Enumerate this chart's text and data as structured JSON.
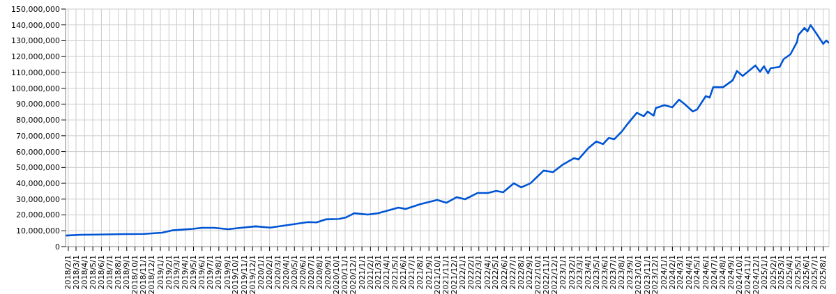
{
  "chart_data": {
    "type": "line",
    "x": [
      "2018-01-22",
      "2018-03-18",
      "2018-05-10",
      "2018-08-25",
      "2018-11-03",
      "2019-01-07",
      "2019-02-15",
      "2019-04-28",
      "2019-06-01",
      "2019-07-15",
      "2019-09-04",
      "2019-10-20",
      "2019-12-12",
      "2020-02-03",
      "2020-04-25",
      "2020-06-20",
      "2020-07-20",
      "2020-08-22",
      "2020-10-10",
      "2020-11-05",
      "2020-12-04",
      "2021-01-22",
      "2021-03-01",
      "2021-04-07",
      "2021-05-13",
      "2021-06-08",
      "2021-08-01",
      "2021-10-01",
      "2021-11-03",
      "2021-12-10",
      "2022-01-10",
      "2022-02-25",
      "2022-04-03",
      "2022-05-03",
      "2022-05-28",
      "2022-07-06",
      "2022-08-01",
      "2022-09-04",
      "2022-10-22",
      "2022-11-25",
      "2022-12-28",
      "2023-02-10",
      "2023-02-25",
      "2023-04-01",
      "2023-05-01",
      "2023-05-25",
      "2023-06-15",
      "2023-07-05",
      "2023-08-03",
      "2023-08-22",
      "2023-09-25",
      "2023-10-20",
      "2023-11-03",
      "2023-11-25",
      "2023-12-03",
      "2024-01-03",
      "2024-02-01",
      "2024-02-25",
      "2024-03-15",
      "2024-04-15",
      "2024-05-01",
      "2024-06-01",
      "2024-06-15",
      "2024-06-28",
      "2024-08-03",
      "2024-09-07",
      "2024-09-22",
      "2024-10-13",
      "2024-11-28",
      "2024-12-15",
      "2024-12-29",
      "2025-01-13",
      "2025-01-22",
      "2025-02-24",
      "2025-03-10",
      "2025-04-04",
      "2025-04-28",
      "2025-05-03",
      "2025-05-25",
      "2025-06-05",
      "2025-06-16",
      "2025-07-07",
      "2025-08-01",
      "2025-08-12",
      "2025-08-22"
    ],
    "series": [
      {
        "color": "#0055d4",
        "values": [
          7000000,
          7500000,
          7600000,
          7900000,
          8000000,
          8800000,
          10300000,
          11200000,
          11900000,
          11900000,
          11000000,
          11900000,
          12800000,
          12000000,
          14100000,
          15500000,
          15300000,
          17200000,
          17500000,
          18500000,
          21100000,
          20200000,
          21100000,
          22900000,
          24600000,
          23800000,
          26800000,
          29500000,
          27700000,
          31200000,
          29900000,
          33900000,
          33900000,
          35200000,
          34300000,
          40000000,
          37400000,
          40000000,
          48000000,
          47100000,
          51500000,
          55900000,
          55000000,
          62000000,
          66400000,
          64700000,
          68600000,
          67800000,
          73000000,
          77400000,
          84500000,
          82300000,
          85300000,
          82700000,
          87500000,
          89300000,
          88000000,
          92800000,
          90200000,
          85300000,
          86700000,
          95000000,
          94100000,
          100700000,
          100700000,
          105100000,
          110900000,
          107800000,
          114400000,
          110400000,
          113900000,
          109500000,
          112600000,
          113500000,
          118300000,
          121400000,
          129300000,
          133700000,
          138100000,
          135900000,
          139900000,
          134600000,
          128000000,
          130200000,
          128500000
        ]
      }
    ],
    "xlim": [
      "2018-01-22",
      "2025-08-22"
    ],
    "xticks": [
      {
        "value": "2018-02-01",
        "label": "2018/2/1"
      },
      {
        "value": "2018-03-01",
        "label": "2018/3/1"
      },
      {
        "value": "2018-04-01",
        "label": "2018/4/1"
      },
      {
        "value": "2018-05-01",
        "label": "2018/5/1"
      },
      {
        "value": "2018-06-01",
        "label": "2018/6/1"
      },
      {
        "value": "2018-07-01",
        "label": "2018/7/1"
      },
      {
        "value": "2018-08-01",
        "label": "2018/8/1"
      },
      {
        "value": "2018-09-01",
        "label": "2018/9/1"
      },
      {
        "value": "2018-10-01",
        "label": "2018/10/1"
      },
      {
        "value": "2018-11-01",
        "label": "2018/11/1"
      },
      {
        "value": "2018-12-01",
        "label": "2018/12/1"
      },
      {
        "value": "2019-01-01",
        "label": "2019/1/1"
      },
      {
        "value": "2019-02-01",
        "label": "2019/2/1"
      },
      {
        "value": "2019-03-01",
        "label": "2019/3/1"
      },
      {
        "value": "2019-04-01",
        "label": "2019/4/1"
      },
      {
        "value": "2019-05-01",
        "label": "2019/5/1"
      },
      {
        "value": "2019-06-01",
        "label": "2019/6/1"
      },
      {
        "value": "2019-07-01",
        "label": "2019/7/1"
      },
      {
        "value": "2019-08-01",
        "label": "2019/8/1"
      },
      {
        "value": "2019-09-01",
        "label": "2019/9/1"
      },
      {
        "value": "2019-10-01",
        "label": "2019/10/1"
      },
      {
        "value": "2019-11-01",
        "label": "2019/11/1"
      },
      {
        "value": "2019-12-01",
        "label": "2019/12/1"
      },
      {
        "value": "2020-01-01",
        "label": "2020/1/1"
      },
      {
        "value": "2020-02-01",
        "label": "2020/2/1"
      },
      {
        "value": "2020-03-01",
        "label": "2020/3/1"
      },
      {
        "value": "2020-04-01",
        "label": "2020/4/1"
      },
      {
        "value": "2020-05-01",
        "label": "2020/5/1"
      },
      {
        "value": "2020-06-01",
        "label": "2020/6/1"
      },
      {
        "value": "2020-07-01",
        "label": "2020/7/1"
      },
      {
        "value": "2020-08-01",
        "label": "2020/8/1"
      },
      {
        "value": "2020-09-01",
        "label": "2020/9/1"
      },
      {
        "value": "2020-10-01",
        "label": "2020/10/1"
      },
      {
        "value": "2020-11-01",
        "label": "2020/11/1"
      },
      {
        "value": "2020-12-01",
        "label": "2020/12/1"
      },
      {
        "value": "2021-01-01",
        "label": "2021/1/1"
      },
      {
        "value": "2021-02-01",
        "label": "2021/2/1"
      },
      {
        "value": "2021-03-01",
        "label": "2021/3/1"
      },
      {
        "value": "2021-04-01",
        "label": "2021/4/1"
      },
      {
        "value": "2021-05-01",
        "label": "2021/5/1"
      },
      {
        "value": "2021-06-01",
        "label": "2021/6/1"
      },
      {
        "value": "2021-07-01",
        "label": "2021/7/1"
      },
      {
        "value": "2021-08-01",
        "label": "2021/8/1"
      },
      {
        "value": "2021-09-01",
        "label": "2021/9/1"
      },
      {
        "value": "2021-10-01",
        "label": "2021/10/1"
      },
      {
        "value": "2021-11-01",
        "label": "2021/11/1"
      },
      {
        "value": "2021-12-01",
        "label": "2021/12/1"
      },
      {
        "value": "2022-01-01",
        "label": "2022/1/1"
      },
      {
        "value": "2022-02-01",
        "label": "2022/2/1"
      },
      {
        "value": "2022-03-01",
        "label": "2022/3/1"
      },
      {
        "value": "2022-04-01",
        "label": "2022/4/1"
      },
      {
        "value": "2022-05-01",
        "label": "2022/5/1"
      },
      {
        "value": "2022-06-01",
        "label": "2022/6/1"
      },
      {
        "value": "2022-07-01",
        "label": "2022/7/1"
      },
      {
        "value": "2022-08-01",
        "label": "2022/8/1"
      },
      {
        "value": "2022-09-01",
        "label": "2022/9/1"
      },
      {
        "value": "2022-10-01",
        "label": "2022/10/1"
      },
      {
        "value": "2022-11-01",
        "label": "2022/11/1"
      },
      {
        "value": "2022-12-01",
        "label": "2022/12/1"
      },
      {
        "value": "2023-01-01",
        "label": "2023/1/1"
      },
      {
        "value": "2023-02-01",
        "label": "2023/2/1"
      },
      {
        "value": "2023-03-01",
        "label": "2023/3/1"
      },
      {
        "value": "2023-04-01",
        "label": "2023/4/1"
      },
      {
        "value": "2023-05-01",
        "label": "2023/5/1"
      },
      {
        "value": "2023-06-01",
        "label": "2023/6/1"
      },
      {
        "value": "2023-07-01",
        "label": "2023/7/1"
      },
      {
        "value": "2023-08-01",
        "label": "2023/8/1"
      },
      {
        "value": "2023-09-01",
        "label": "2023/9/1"
      },
      {
        "value": "2023-10-01",
        "label": "2023/10/1"
      },
      {
        "value": "2023-11-01",
        "label": "2023/11/1"
      },
      {
        "value": "2023-12-01",
        "label": "2023/12/1"
      },
      {
        "value": "2024-01-01",
        "label": "2024/1/1"
      },
      {
        "value": "2024-02-01",
        "label": "2024/2/1"
      },
      {
        "value": "2024-03-01",
        "label": "2024/3/1"
      },
      {
        "value": "2024-04-01",
        "label": "2024/4/1"
      },
      {
        "value": "2024-05-01",
        "label": "2024/5/1"
      },
      {
        "value": "2024-06-01",
        "label": "2024/6/1"
      },
      {
        "value": "2024-07-01",
        "label": "2024/7/1"
      },
      {
        "value": "2024-08-01",
        "label": "2024/8/1"
      },
      {
        "value": "2024-09-01",
        "label": "2024/9/1"
      },
      {
        "value": "2024-10-01",
        "label": "2024/10/1"
      },
      {
        "value": "2024-11-01",
        "label": "2024/11/1"
      },
      {
        "value": "2024-12-01",
        "label": "2024/12/1"
      },
      {
        "value": "2025-01-01",
        "label": "2025/1/1"
      },
      {
        "value": "2025-02-01",
        "label": "2025/2/1"
      },
      {
        "value": "2025-03-01",
        "label": "2025/3/1"
      },
      {
        "value": "2025-04-01",
        "label": "2025/4/1"
      },
      {
        "value": "2025-05-01",
        "label": "2025/5/1"
      },
      {
        "value": "2025-06-01",
        "label": "2025/6/1"
      },
      {
        "value": "2025-07-01",
        "label": "2025/7/1"
      },
      {
        "value": "2025-08-01",
        "label": "2025/8/1"
      }
    ],
    "ylim": [
      0,
      150000000
    ],
    "yticks": [
      {
        "value": 0,
        "label": "0"
      },
      {
        "value": 10000000,
        "label": "10,000,000"
      },
      {
        "value": 20000000,
        "label": "20,000,000"
      },
      {
        "value": 30000000,
        "label": "30,000,000"
      },
      {
        "value": 40000000,
        "label": "40,000,000"
      },
      {
        "value": 50000000,
        "label": "50,000,000"
      },
      {
        "value": 60000000,
        "label": "60,000,000"
      },
      {
        "value": 70000000,
        "label": "70,000,000"
      },
      {
        "value": 80000000,
        "label": "80,000,000"
      },
      {
        "value": 90000000,
        "label": "90,000,000"
      },
      {
        "value": 100000000,
        "label": "100,000,000"
      },
      {
        "value": 110000000,
        "label": "110,000,000"
      },
      {
        "value": 120000000,
        "label": "120,000,000"
      },
      {
        "value": 130000000,
        "label": "130,000,000"
      },
      {
        "value": 140000000,
        "label": "140,000,000"
      },
      {
        "value": 150000000,
        "label": "150,000,000"
      }
    ],
    "grid": true,
    "legend": false,
    "marker": "none",
    "line_style": "solid"
  }
}
